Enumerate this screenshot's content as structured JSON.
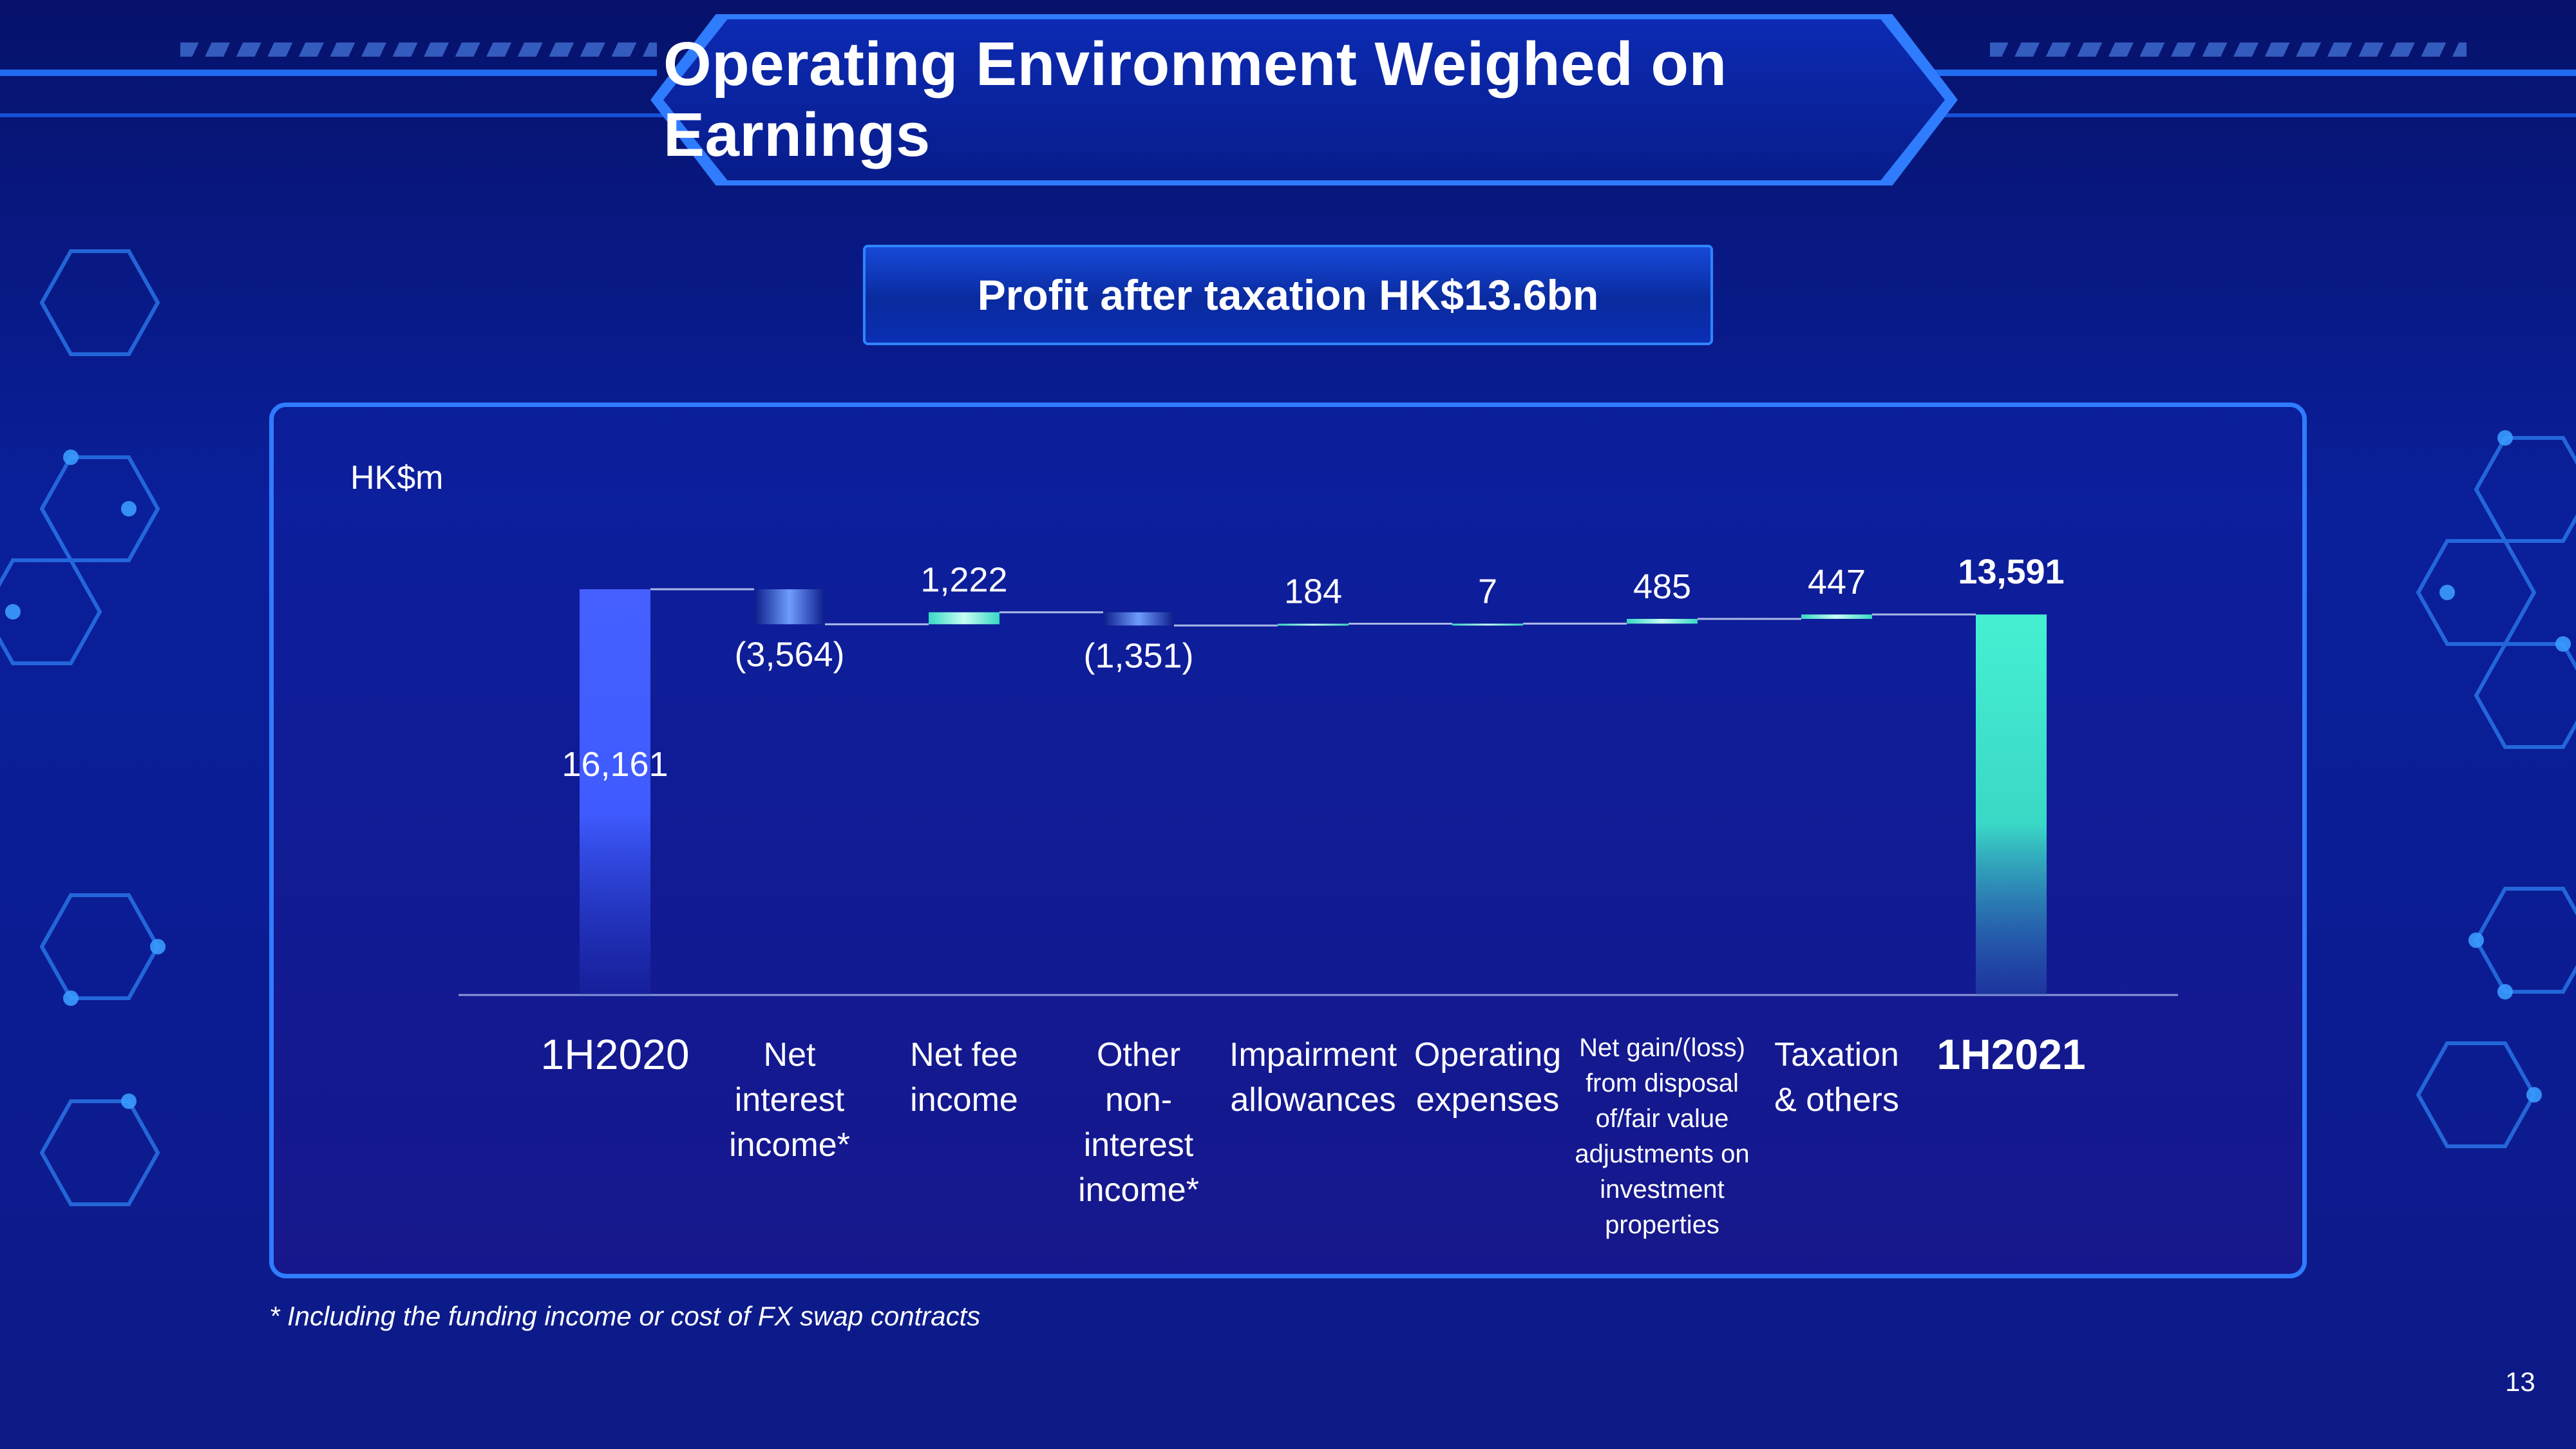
{
  "header": {
    "title": "Operating Environment Weighed on Earnings"
  },
  "banner": {
    "text": "Profit after taxation HK$13.6bn"
  },
  "unit_label": "HK$m",
  "footnote": "* Including the funding income or cost of FX swap contracts",
  "page_number": "13",
  "colors": {
    "start_bar": "#3f5bff",
    "end_bar": "#3fe8cc",
    "increase": "#5ff0dc",
    "decrease": "#5a86ff",
    "connector": "#aab8e8",
    "accent": "#2f7cff"
  },
  "chart_data": {
    "type": "waterfall",
    "unit": "HK$m",
    "categories": [
      "1H2020",
      "Net interest income*",
      "Net fee income",
      "Other non-interest income*",
      "Impairment allowances",
      "Operating expenses",
      "Net gain/(loss) from disposal of/fair value adjustments on investment properties",
      "Taxation & others",
      "1H2021"
    ],
    "category_lines": [
      [
        "1H2020"
      ],
      [
        "Net",
        "interest",
        "income*"
      ],
      [
        "Net fee",
        "income"
      ],
      [
        "Other",
        "non-",
        "interest",
        "income*"
      ],
      [
        "Impairment",
        "allowances"
      ],
      [
        "Operating",
        "expenses"
      ],
      [
        "Net gain/(loss)",
        "from disposal",
        "of/fair value",
        "adjustments on",
        "investment",
        "properties"
      ],
      [
        "Taxation",
        "& others"
      ],
      [
        "1H2021"
      ]
    ],
    "values": [
      16161,
      -3564,
      1222,
      -1351,
      184,
      7,
      485,
      447,
      13591
    ],
    "value_labels": [
      "16,161",
      "(3,564)",
      "1,222",
      "(1,351)",
      "184",
      "7",
      "485",
      "447",
      "13,591"
    ],
    "bar_kinds": [
      "total",
      "delta",
      "delta",
      "delta",
      "delta",
      "delta",
      "delta",
      "delta",
      "total"
    ],
    "ylim": [
      6000,
      17000
    ],
    "grid": false,
    "legend": "none"
  }
}
